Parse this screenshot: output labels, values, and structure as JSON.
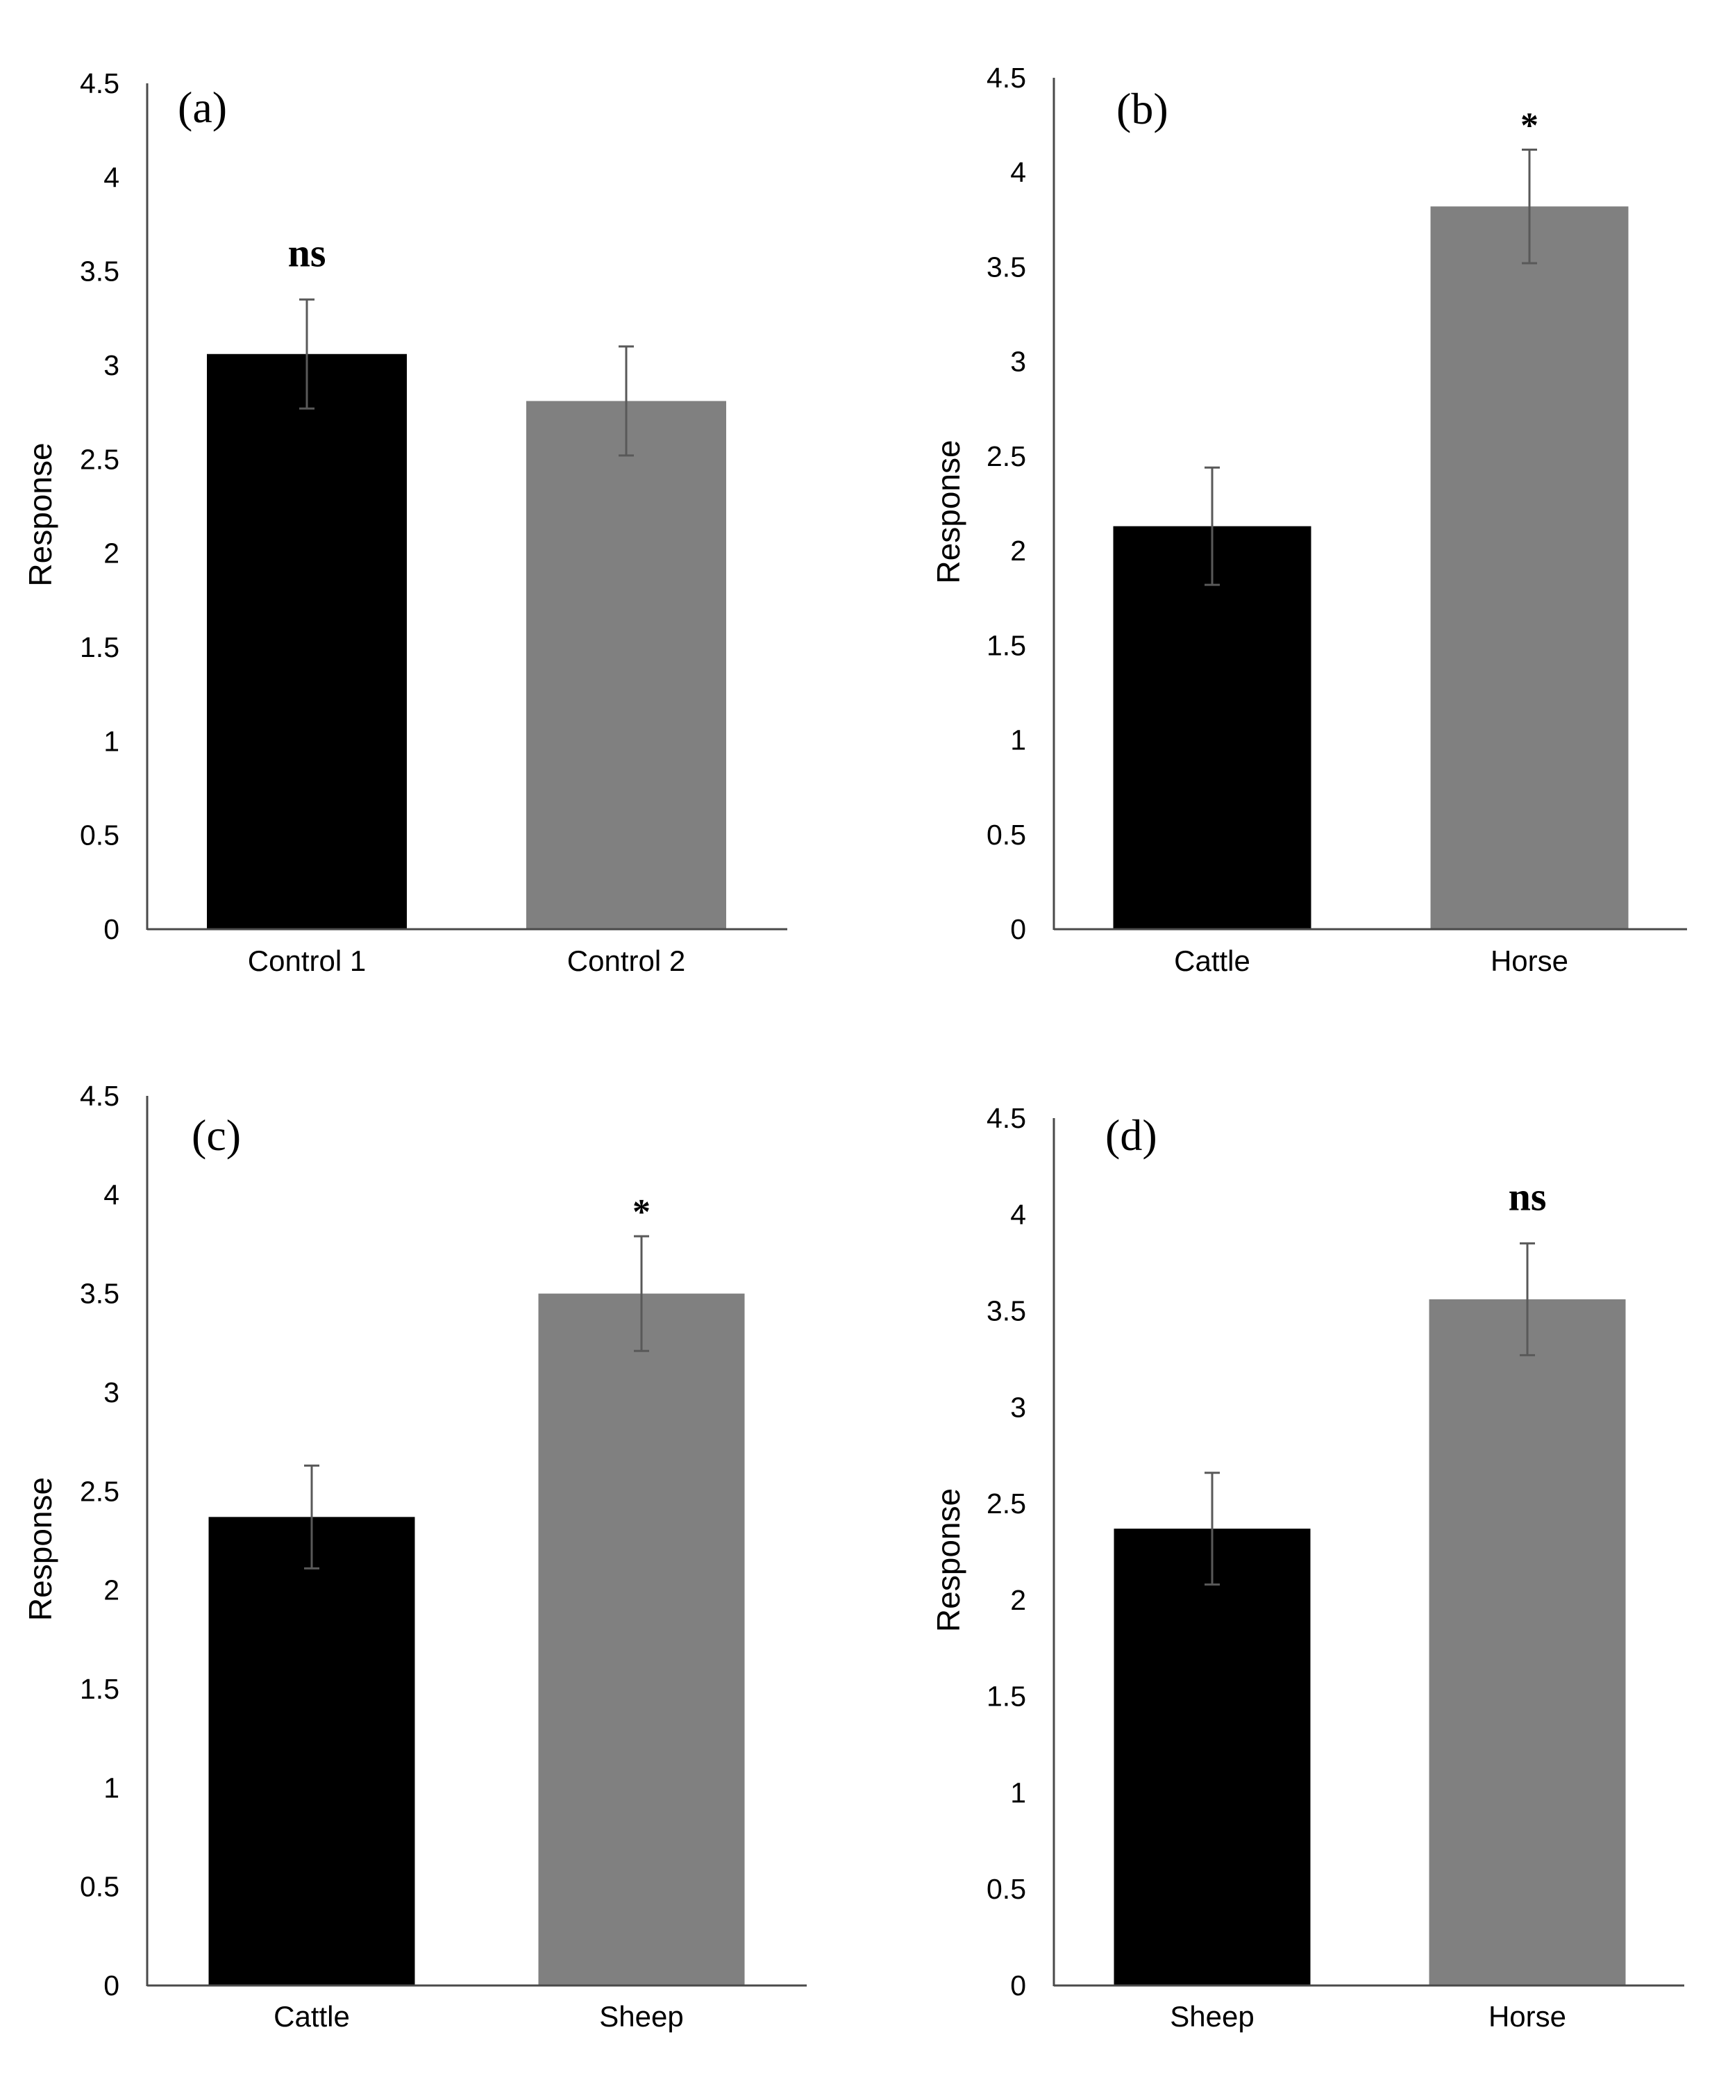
{
  "chart_data": [
    {
      "type": "bar",
      "panel_label": "(a)",
      "categories": [
        "Control 1",
        "Control 2"
      ],
      "values": [
        3.06,
        2.81
      ],
      "errors": [
        0.29,
        0.29
      ],
      "colors": [
        "#000000",
        "#808080"
      ],
      "annotation": {
        "text": "ns",
        "category_index": 0,
        "style": "ns"
      },
      "ylabel": "Response",
      "ylim": [
        0,
        4.5
      ],
      "yticks": [
        "0",
        "0.5",
        "1",
        "1.5",
        "2",
        "2.5",
        "3",
        "3.5",
        "4",
        "4.5"
      ]
    },
    {
      "type": "bar",
      "panel_label": "(b)",
      "categories": [
        "Cattle",
        "Horse"
      ],
      "values": [
        2.13,
        3.82
      ],
      "errors": [
        0.31,
        0.3
      ],
      "colors": [
        "#000000",
        "#808080"
      ],
      "annotation": {
        "text": "*",
        "category_index": 1,
        "style": "star"
      },
      "ylabel": "Response",
      "ylim": [
        0,
        4.5
      ],
      "yticks": [
        "0",
        "0.5",
        "1",
        "1.5",
        "2",
        "2.5",
        "3",
        "3.5",
        "4",
        "4.5"
      ]
    },
    {
      "type": "bar",
      "panel_label": "(c)",
      "categories": [
        "Cattle",
        "Sheep"
      ],
      "values": [
        2.37,
        3.5
      ],
      "errors": [
        0.26,
        0.29
      ],
      "colors": [
        "#000000",
        "#808080"
      ],
      "annotation": {
        "text": "*",
        "category_index": 1,
        "style": "star"
      },
      "ylabel": "Response",
      "ylim": [
        0,
        4.5
      ],
      "yticks": [
        "0",
        "0.5",
        "1",
        "1.5",
        "2",
        "2.5",
        "3",
        "3.5",
        "4",
        "4.5"
      ]
    },
    {
      "type": "bar",
      "panel_label": "(d)",
      "categories": [
        "Sheep",
        "Horse"
      ],
      "values": [
        2.37,
        3.56
      ],
      "errors": [
        0.29,
        0.29
      ],
      "colors": [
        "#000000",
        "#808080"
      ],
      "annotation": {
        "text": "ns",
        "category_index": 1,
        "style": "ns"
      },
      "ylabel": "Response",
      "ylim": [
        0,
        4.5
      ],
      "yticks": [
        "0",
        "0.5",
        "1",
        "1.5",
        "2",
        "2.5",
        "3",
        "3.5",
        "4",
        "4.5"
      ]
    }
  ]
}
